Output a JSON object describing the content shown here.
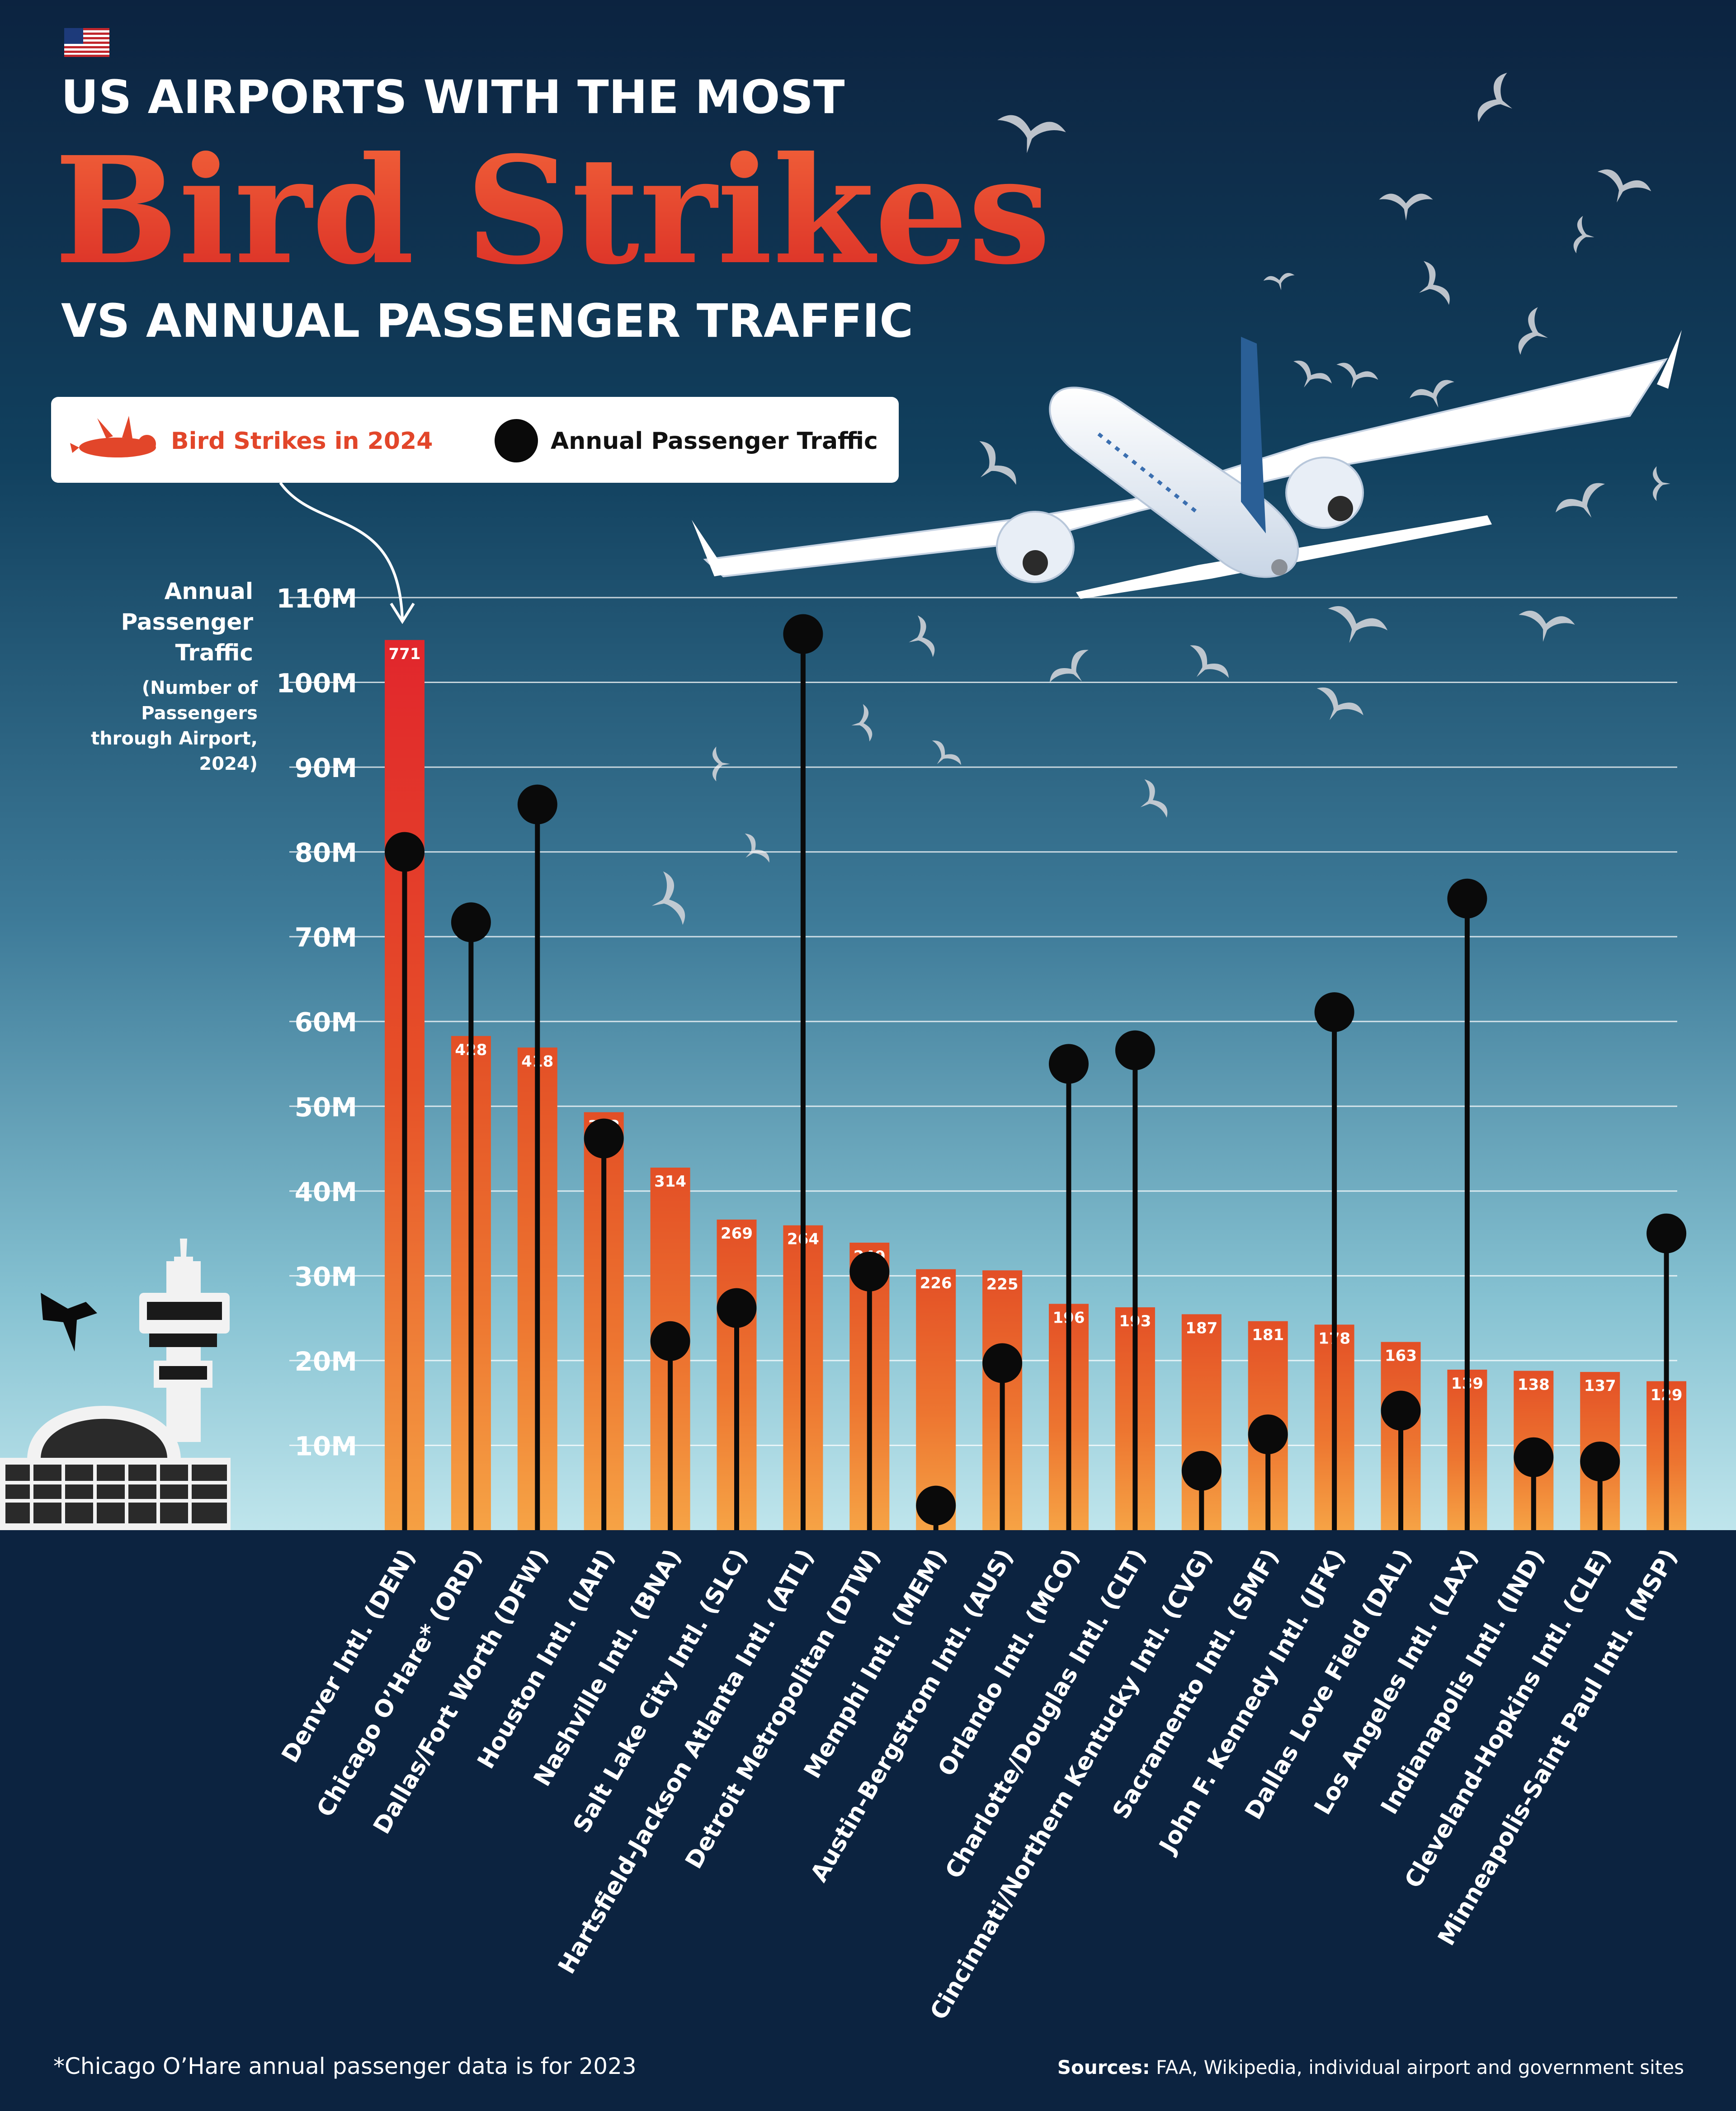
{
  "header": {
    "title_line1": "US AIRPORTS WITH THE MOST",
    "title_main": "Bird Strikes",
    "title_line3": "VS ANNUAL PASSENGER TRAFFIC"
  },
  "legend": {
    "bird_strikes_label": "Bird Strikes in 2024",
    "passenger_label": "Annual Passenger Traffic"
  },
  "axis": {
    "title": "Annual\nPassenger\nTraffic",
    "subtitle": "(Number of\nPassengers\nthrough Airport,\n2024)"
  },
  "footer": {
    "footnote": "*Chicago O’Hare annual passenger data is for 2023",
    "sources_label": "Sources:",
    "sources_text": " FAA, Wikipedia, individual airport and government sites"
  },
  "colors": {
    "bar_top_red": "#e0262b",
    "bar_orange": "#e8582a",
    "bar_light_orange": "#f5a043",
    "dot": "#0a0a0a",
    "bg_top": "#0c2340",
    "bg_bottom": "#b9e2ea",
    "title_red": "#e8502a"
  },
  "icons": [
    "us-flag-icon",
    "dead-bird-icon",
    "airplane-illustration",
    "flying-bird-icon",
    "control-tower-illustration"
  ],
  "chart_data": {
    "type": "bar",
    "secondary_type": "lollipop",
    "categories": [
      "Denver Intl. (DEN)",
      "Chicago O’Hare* (ORD)",
      "Dallas/Fort Worth (DFW)",
      "Houston Intl. (IAH)",
      "Nashville Intl. (BNA)",
      "Salt Lake City Intl. (SLC)",
      "Hartsfield-Jackson Atlanta Intl. (ATL)",
      "Detroit Metropolitan (DTW)",
      "Memphi Intl. (MEM)",
      "Austin-Bergstrom Intl. (AUS)",
      "Orlando Intl. (MCO)",
      "Charlotte/Douglas Intl. (CLT)",
      "Cincinnati/Northern Kentucky Intl. (CVG)",
      "Sacramento Intl. (SMF)",
      "John F. Kennedy Intl. (JFK)",
      "Dallas Love Field (DAL)",
      "Los Angeles Intl. (LAX)",
      "Indianapolis Intl. (IND)",
      "Cleveland-Hopkins Intl. (CLE)",
      "Minneapolis-Saint Paul Intl. (MSP)"
    ],
    "series": [
      {
        "name": "Bird Strikes in 2024",
        "values": [
          771,
          428,
          418,
          362,
          314,
          269,
          264,
          249,
          226,
          225,
          196,
          193,
          187,
          181,
          178,
          163,
          139,
          138,
          137,
          129
        ]
      },
      {
        "name": "Annual Passenger Traffic",
        "values": [
          80.0,
          71.7,
          85.6,
          46.2,
          22.3,
          26.2,
          105.7,
          30.5,
          2.9,
          19.7,
          55.0,
          56.6,
          7.0,
          11.3,
          61.1,
          14.1,
          74.5,
          8.6,
          8.1,
          35.0
        ]
      }
    ],
    "y_tick_labels": [
      "10M",
      "20M",
      "30M",
      "40M",
      "50M",
      "60M",
      "70M",
      "80M",
      "90M",
      "100M",
      "110M"
    ],
    "ylim": [
      0,
      110
    ],
    "bird_strikes_max_reference": 771,
    "grid": true,
    "legend_position": "top-left"
  }
}
